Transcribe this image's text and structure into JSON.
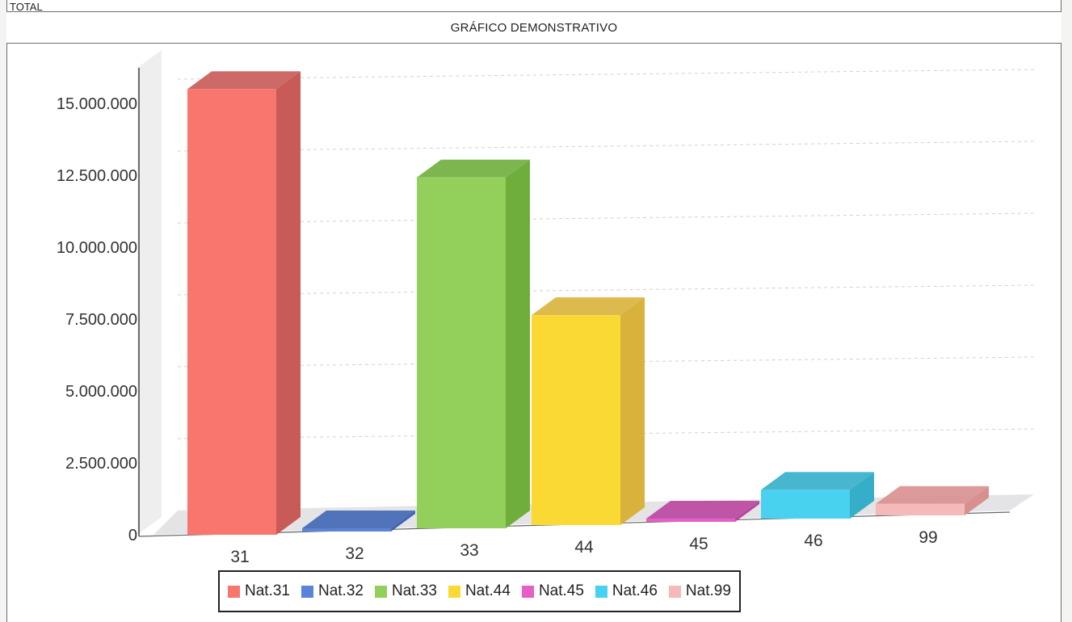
{
  "page": {
    "top_label": "TOTAL",
    "title": "GRÁFICO DEMONSTRATIVO"
  },
  "chart_data": {
    "type": "bar",
    "title": "GRÁFICO DEMONSTRATIVO",
    "categories": [
      "31",
      "32",
      "33",
      "44",
      "45",
      "46",
      "99"
    ],
    "values": [
      15500000,
      50000,
      12200000,
      7300000,
      100000,
      1000000,
      400000
    ],
    "ylim": [
      0,
      15000000
    ],
    "yticks": [
      "0",
      "2.500.000",
      "5.000.000",
      "7.500.000",
      "10.000.000",
      "12.500.000",
      "15.000.000"
    ],
    "ytick_values": [
      0,
      2500000,
      5000000,
      7500000,
      10000000,
      12500000,
      15000000
    ],
    "legend": [
      "Nat.31",
      "Nat.32",
      "Nat.33",
      "Nat.44",
      "Nat.45",
      "Nat.46",
      "Nat.99"
    ],
    "legend_position": "bottom",
    "grid": true,
    "style": "3d",
    "colors": [
      "#f8766d",
      "#5b84d8",
      "#93cf5b",
      "#fbd935",
      "#e65fc6",
      "#49d2f0",
      "#f6b9b9"
    ],
    "side_colors": [
      "#c85a58",
      "#3f66b5",
      "#6fae3c",
      "#d8b23a",
      "#b9459e",
      "#34aec9",
      "#d88f8f"
    ]
  }
}
